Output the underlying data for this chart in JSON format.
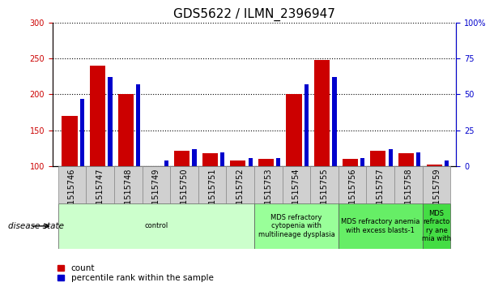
{
  "title": "GDS5622 / ILMN_2396947",
  "samples": [
    "GSM1515746",
    "GSM1515747",
    "GSM1515748",
    "GSM1515749",
    "GSM1515750",
    "GSM1515751",
    "GSM1515752",
    "GSM1515753",
    "GSM1515754",
    "GSM1515755",
    "GSM1515756",
    "GSM1515757",
    "GSM1515758",
    "GSM1515759"
  ],
  "count_values": [
    170,
    240,
    200,
    100,
    122,
    118,
    108,
    110,
    200,
    248,
    110,
    122,
    118,
    103
  ],
  "percentile_pct": [
    47,
    62,
    57,
    4,
    12,
    10,
    6,
    6,
    57,
    62,
    6,
    12,
    10,
    4
  ],
  "ylim_left": [
    100,
    300
  ],
  "ylim_right": [
    0,
    100
  ],
  "yticks_left": [
    100,
    150,
    200,
    250,
    300
  ],
  "yticks_right": [
    0,
    25,
    50,
    75,
    100
  ],
  "left_tick_color": "#cc0000",
  "right_tick_color": "#0000cc",
  "bar_color_red": "#cc0000",
  "bar_color_blue": "#0000cc",
  "bg_color": "#ffffff",
  "plot_bg": "#ffffff",
  "xtick_bg": "#d0d0d0",
  "disease_states": [
    {
      "label": "control",
      "start": 0,
      "end": 7,
      "color": "#ccffcc"
    },
    {
      "label": "MDS refractory\ncytopenia with\nmultilineage dysplasia",
      "start": 7,
      "end": 10,
      "color": "#99ff99"
    },
    {
      "label": "MDS refractory anemia\nwith excess blasts-1",
      "start": 10,
      "end": 13,
      "color": "#66ee66"
    },
    {
      "label": "MDS\nrefracto\nry ane\nmia with",
      "start": 13,
      "end": 14,
      "color": "#44dd44"
    }
  ],
  "disease_state_label": "disease state",
  "legend_count": "count",
  "legend_percentile": "percentile rank within the sample",
  "title_fontsize": 11,
  "tick_fontsize": 7,
  "label_fontsize": 7,
  "red_bar_width": 0.55,
  "blue_bar_width": 0.15
}
